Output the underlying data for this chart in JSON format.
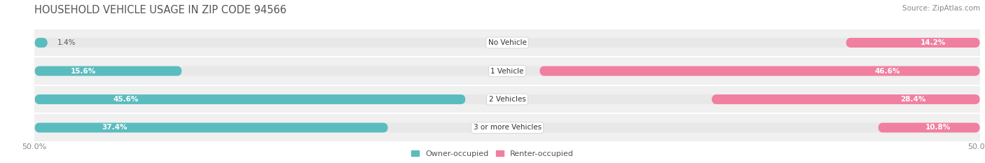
{
  "title": "HOUSEHOLD VEHICLE USAGE IN ZIP CODE 94566",
  "source": "Source: ZipAtlas.com",
  "categories": [
    "No Vehicle",
    "1 Vehicle",
    "2 Vehicles",
    "3 or more Vehicles"
  ],
  "owner_values": [
    1.4,
    15.6,
    45.6,
    37.4
  ],
  "renter_values": [
    14.2,
    46.6,
    28.4,
    10.8
  ],
  "owner_color": "#5bbcbf",
  "renter_color": "#f07fa0",
  "renter_color_light": "#f9b8cc",
  "bar_bg_color": "#e8e8e8",
  "row_bg_color": "#f0f0f0",
  "owner_label": "Owner-occupied",
  "renter_label": "Renter-occupied",
  "xticklabels": [
    "50.0%",
    "50.0%"
  ],
  "background_color": "#ffffff",
  "title_fontsize": 10.5,
  "source_fontsize": 7.5,
  "tick_fontsize": 8,
  "label_fontsize": 7.5,
  "pct_fontsize": 7.5
}
